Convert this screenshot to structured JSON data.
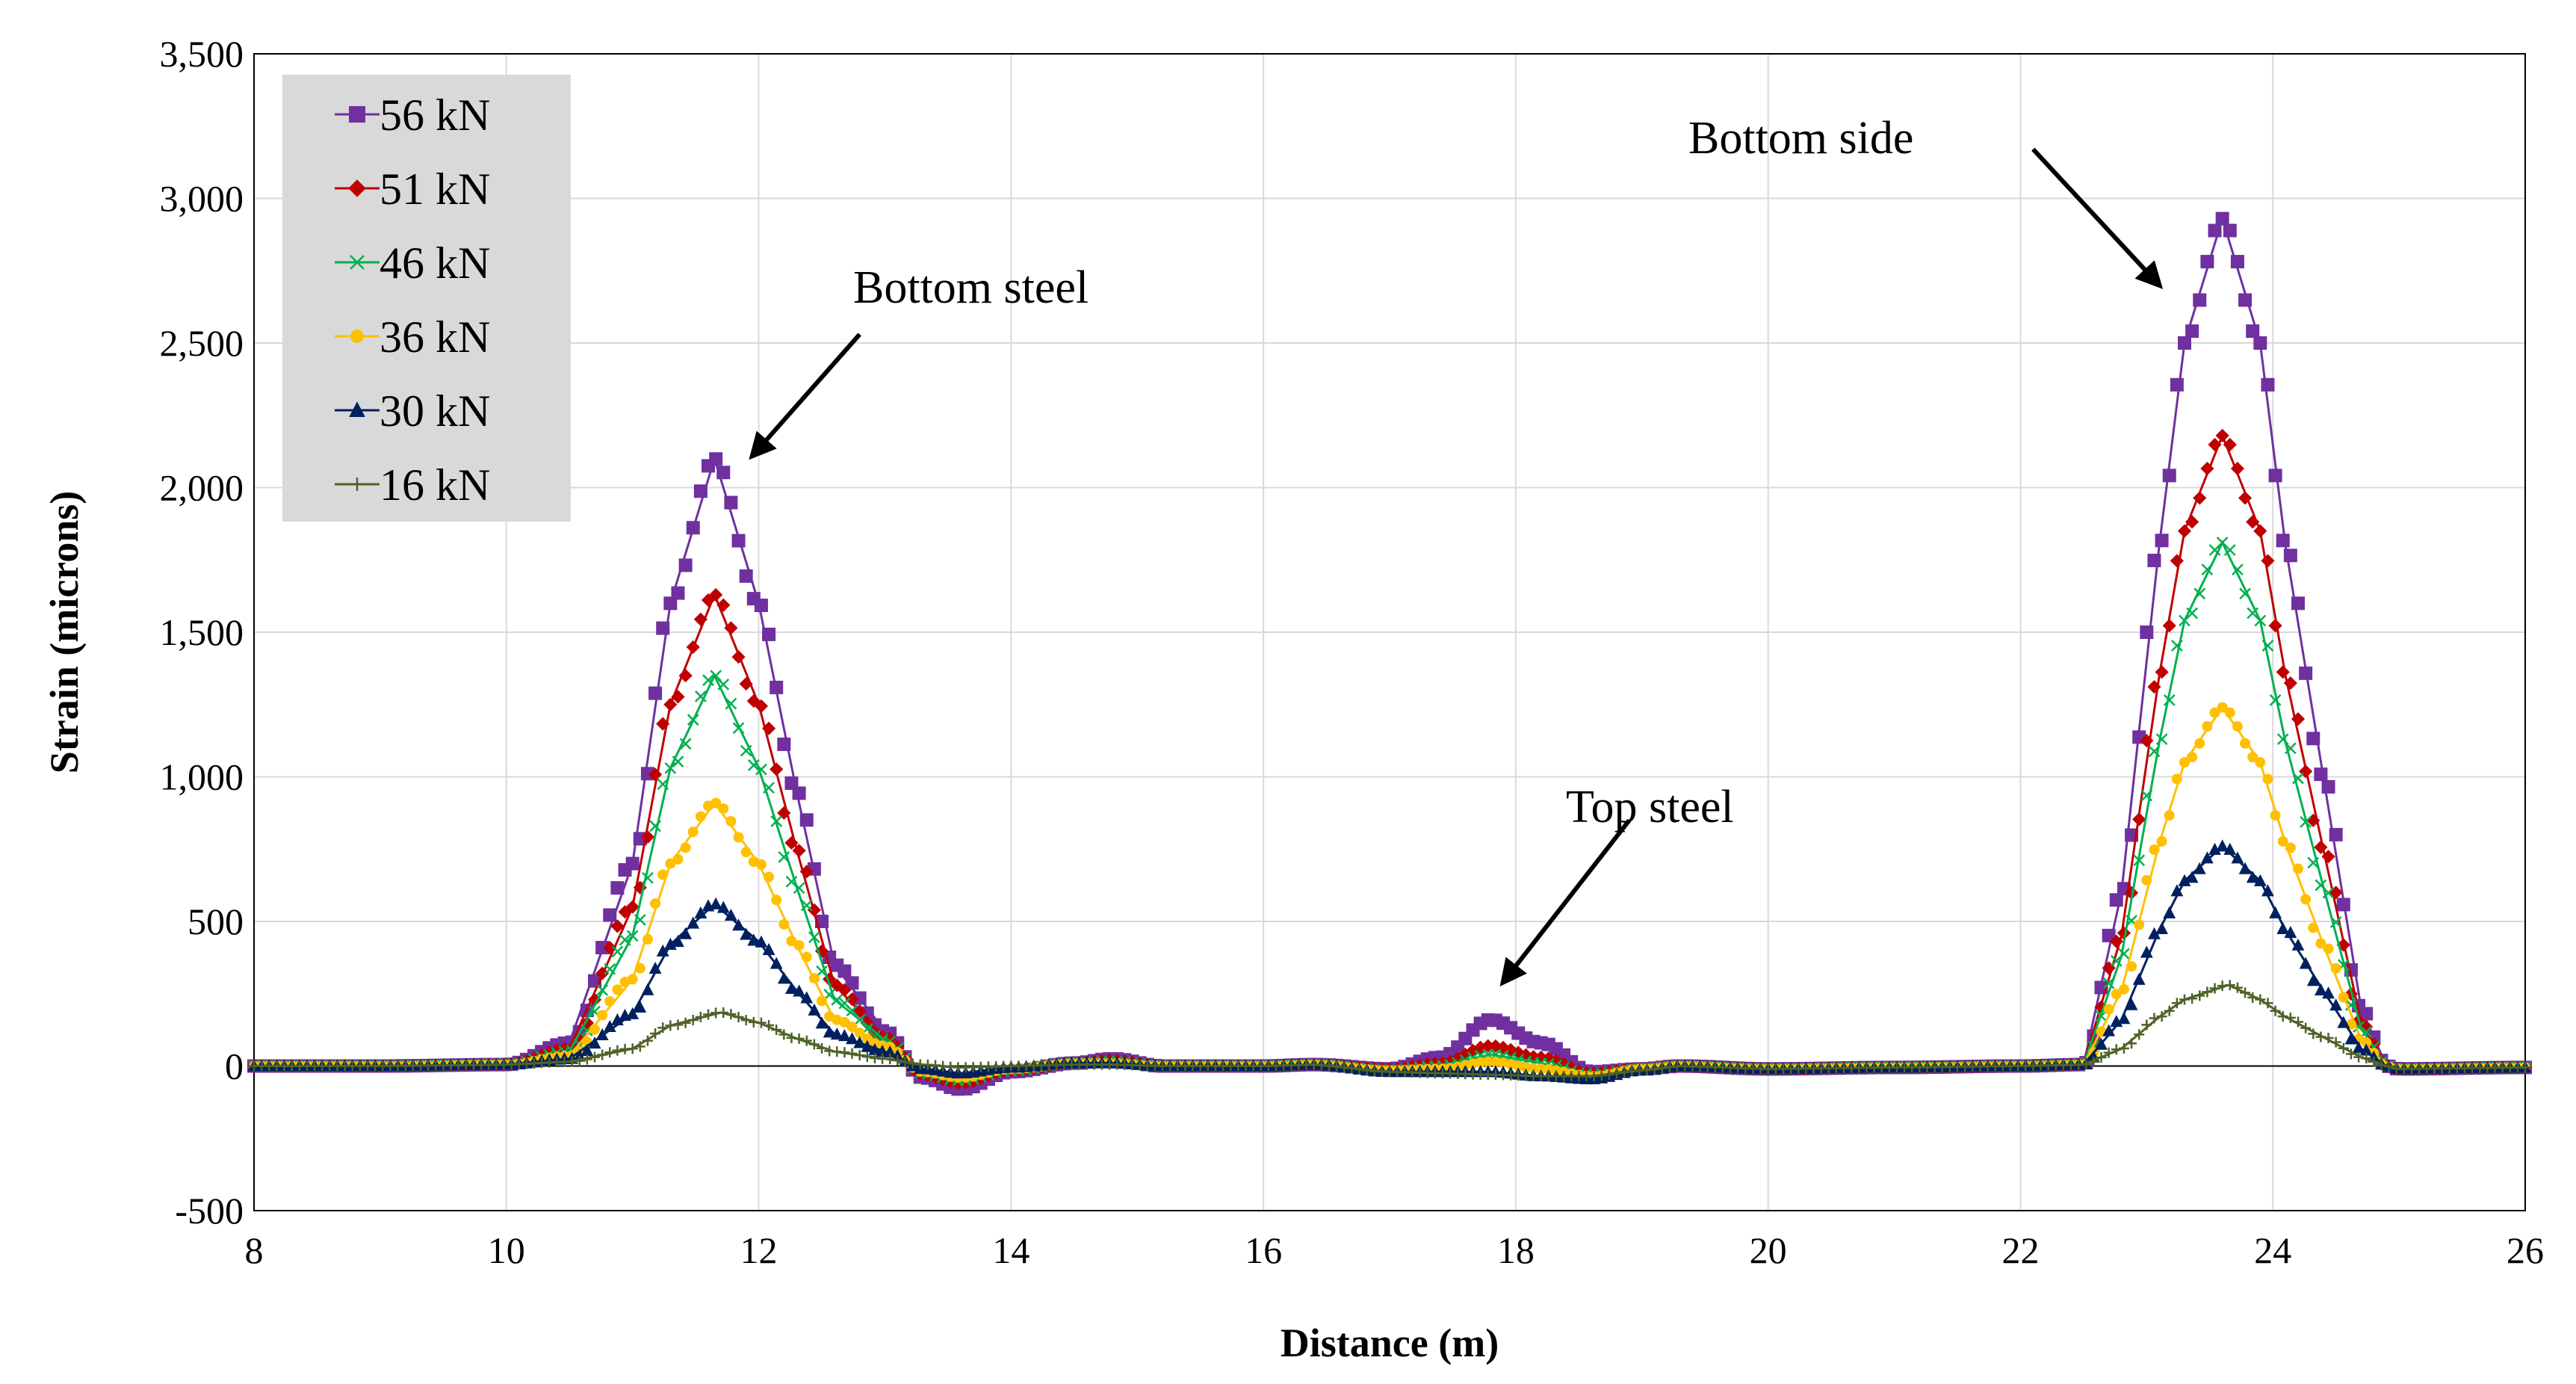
{
  "chart_data": {
    "type": "line",
    "title": "",
    "xlabel": "Distance (m)",
    "ylabel": "Strain (microns)",
    "xlim": [
      8,
      26
    ],
    "ylim": [
      -500,
      3500
    ],
    "xticks": [
      8,
      10,
      12,
      14,
      16,
      18,
      20,
      22,
      24,
      26
    ],
    "yticks": [
      -500,
      0,
      500,
      1000,
      1500,
      2000,
      2500,
      3000,
      3500
    ],
    "ytick_labels": [
      "-500",
      "0",
      "500",
      "1,000",
      "1,500",
      "2,000",
      "2,500",
      "3,000",
      "3,500"
    ],
    "grid": true,
    "legend_position": "top-left",
    "series": [
      {
        "name": "56 kN",
        "color": "#7030A0",
        "marker": "square",
        "points": [
          [
            8,
            0
          ],
          [
            9,
            0
          ],
          [
            10,
            5
          ],
          [
            10.5,
            80
          ],
          [
            11,
            700
          ],
          [
            11.3,
            1600
          ],
          [
            11.65,
            2100
          ],
          [
            12,
            1600
          ],
          [
            12.3,
            950
          ],
          [
            12.6,
            350
          ],
          [
            13,
            120
          ],
          [
            13.3,
            -40
          ],
          [
            13.6,
            -80
          ],
          [
            14,
            -20
          ],
          [
            14.5,
            10
          ],
          [
            14.8,
            25
          ],
          [
            15.2,
            0
          ],
          [
            16,
            0
          ],
          [
            16.4,
            5
          ],
          [
            17,
            -10
          ],
          [
            17.4,
            30
          ],
          [
            17.8,
            160
          ],
          [
            18.2,
            80
          ],
          [
            18.6,
            -20
          ],
          [
            19,
            -10
          ],
          [
            19.3,
            0
          ],
          [
            20,
            -10
          ],
          [
            21,
            -5
          ],
          [
            22,
            0
          ],
          [
            22.5,
            5
          ],
          [
            22.8,
            600
          ],
          [
            23.1,
            1800
          ],
          [
            23.3,
            2500
          ],
          [
            23.6,
            2930
          ],
          [
            23.9,
            2500
          ],
          [
            24.1,
            1800
          ],
          [
            24.4,
            1000
          ],
          [
            24.7,
            200
          ],
          [
            24.9,
            0
          ],
          [
            25,
            -10
          ],
          [
            26,
            -5
          ]
        ]
      },
      {
        "name": "51 kN",
        "color": "#C00000",
        "marker": "diamond",
        "points": [
          [
            8,
            0
          ],
          [
            9,
            0
          ],
          [
            10,
            5
          ],
          [
            10.5,
            60
          ],
          [
            11,
            550
          ],
          [
            11.3,
            1250
          ],
          [
            11.65,
            1630
          ],
          [
            12,
            1250
          ],
          [
            12.3,
            750
          ],
          [
            12.6,
            280
          ],
          [
            13,
            100
          ],
          [
            13.3,
            -30
          ],
          [
            13.6,
            -60
          ],
          [
            14,
            -15
          ],
          [
            14.5,
            10
          ],
          [
            14.8,
            20
          ],
          [
            15.2,
            0
          ],
          [
            16,
            0
          ],
          [
            16.4,
            5
          ],
          [
            17,
            -10
          ],
          [
            17.4,
            10
          ],
          [
            17.8,
            70
          ],
          [
            18.2,
            30
          ],
          [
            18.6,
            -25
          ],
          [
            19,
            -10
          ],
          [
            19.3,
            0
          ],
          [
            20,
            -10
          ],
          [
            21,
            -5
          ],
          [
            22,
            0
          ],
          [
            22.5,
            5
          ],
          [
            22.8,
            450
          ],
          [
            23.1,
            1350
          ],
          [
            23.3,
            1850
          ],
          [
            23.6,
            2180
          ],
          [
            23.9,
            1850
          ],
          [
            24.1,
            1350
          ],
          [
            24.4,
            750
          ],
          [
            24.7,
            150
          ],
          [
            24.9,
            0
          ],
          [
            25,
            -10
          ],
          [
            26,
            -5
          ]
        ]
      },
      {
        "name": "46 kN",
        "color": "#00B050",
        "marker": "x",
        "points": [
          [
            8,
            0
          ],
          [
            9,
            0
          ],
          [
            10,
            5
          ],
          [
            10.5,
            50
          ],
          [
            11,
            450
          ],
          [
            11.3,
            1030
          ],
          [
            11.65,
            1350
          ],
          [
            12,
            1030
          ],
          [
            12.3,
            620
          ],
          [
            12.6,
            230
          ],
          [
            13,
            90
          ],
          [
            13.3,
            -25
          ],
          [
            13.6,
            -50
          ],
          [
            14,
            -15
          ],
          [
            14.5,
            10
          ],
          [
            14.8,
            15
          ],
          [
            15.2,
            0
          ],
          [
            16,
            0
          ],
          [
            16.4,
            5
          ],
          [
            17,
            -15
          ],
          [
            17.4,
            0
          ],
          [
            17.8,
            40
          ],
          [
            18.2,
            10
          ],
          [
            18.6,
            -30
          ],
          [
            19,
            -10
          ],
          [
            19.3,
            0
          ],
          [
            20,
            -10
          ],
          [
            21,
            -5
          ],
          [
            22,
            0
          ],
          [
            22.5,
            5
          ],
          [
            22.8,
            380
          ],
          [
            23.1,
            1120
          ],
          [
            23.3,
            1540
          ],
          [
            23.6,
            1810
          ],
          [
            23.9,
            1540
          ],
          [
            24.1,
            1120
          ],
          [
            24.4,
            620
          ],
          [
            24.7,
            130
          ],
          [
            24.9,
            0
          ],
          [
            25,
            -10
          ],
          [
            26,
            -5
          ]
        ]
      },
      {
        "name": "36 kN",
        "color": "#FFC000",
        "marker": "circle",
        "points": [
          [
            8,
            0
          ],
          [
            9,
            0
          ],
          [
            10,
            5
          ],
          [
            10.5,
            35
          ],
          [
            11,
            300
          ],
          [
            11.3,
            700
          ],
          [
            11.65,
            910
          ],
          [
            12,
            700
          ],
          [
            12.3,
            420
          ],
          [
            12.6,
            160
          ],
          [
            13,
            70
          ],
          [
            13.3,
            -20
          ],
          [
            13.6,
            -40
          ],
          [
            14,
            -10
          ],
          [
            14.5,
            10
          ],
          [
            14.8,
            10
          ],
          [
            15.2,
            0
          ],
          [
            16,
            0
          ],
          [
            16.4,
            5
          ],
          [
            17,
            -15
          ],
          [
            17.4,
            -10
          ],
          [
            17.8,
            15
          ],
          [
            18.2,
            -10
          ],
          [
            18.6,
            -35
          ],
          [
            19,
            -10
          ],
          [
            19.3,
            0
          ],
          [
            20,
            -10
          ],
          [
            21,
            -5
          ],
          [
            22,
            0
          ],
          [
            22.5,
            5
          ],
          [
            22.8,
            260
          ],
          [
            23.1,
            770
          ],
          [
            23.3,
            1050
          ],
          [
            23.6,
            1240
          ],
          [
            23.9,
            1050
          ],
          [
            24.1,
            770
          ],
          [
            24.4,
            420
          ],
          [
            24.7,
            90
          ],
          [
            24.9,
            0
          ],
          [
            25,
            -10
          ],
          [
            26,
            -5
          ]
        ]
      },
      {
        "name": "30 kN",
        "color": "#002060",
        "marker": "triangle",
        "points": [
          [
            8,
            0
          ],
          [
            9,
            0
          ],
          [
            10,
            5
          ],
          [
            10.5,
            25
          ],
          [
            11,
            180
          ],
          [
            11.3,
            420
          ],
          [
            11.65,
            560
          ],
          [
            12,
            430
          ],
          [
            12.3,
            260
          ],
          [
            12.6,
            110
          ],
          [
            13,
            50
          ],
          [
            13.3,
            -10
          ],
          [
            13.6,
            -25
          ],
          [
            14,
            -5
          ],
          [
            14.5,
            10
          ],
          [
            14.8,
            10
          ],
          [
            15.2,
            0
          ],
          [
            16,
            0
          ],
          [
            16.4,
            5
          ],
          [
            17,
            -20
          ],
          [
            17.4,
            -20
          ],
          [
            17.8,
            -20
          ],
          [
            18.2,
            -35
          ],
          [
            18.6,
            -45
          ],
          [
            19,
            -15
          ],
          [
            19.3,
            0
          ],
          [
            20,
            -10
          ],
          [
            21,
            -5
          ],
          [
            22,
            0
          ],
          [
            22.5,
            5
          ],
          [
            22.8,
            160
          ],
          [
            23.1,
            470
          ],
          [
            23.3,
            640
          ],
          [
            23.6,
            760
          ],
          [
            23.9,
            640
          ],
          [
            24.1,
            470
          ],
          [
            24.4,
            260
          ],
          [
            24.7,
            60
          ],
          [
            24.9,
            0
          ],
          [
            25,
            -10
          ],
          [
            26,
            -5
          ]
        ]
      },
      {
        "name": "16 kN",
        "color": "#4F6228",
        "marker": "plus",
        "points": [
          [
            8,
            0
          ],
          [
            9,
            0
          ],
          [
            10,
            5
          ],
          [
            10.5,
            15
          ],
          [
            11,
            60
          ],
          [
            11.3,
            140
          ],
          [
            11.7,
            185
          ],
          [
            12,
            150
          ],
          [
            12.3,
            95
          ],
          [
            12.6,
            50
          ],
          [
            13,
            25
          ],
          [
            13.3,
            5
          ],
          [
            13.6,
            -5
          ],
          [
            14,
            0
          ],
          [
            14.5,
            5
          ],
          [
            14.8,
            5
          ],
          [
            15.2,
            0
          ],
          [
            16,
            0
          ],
          [
            16.4,
            5
          ],
          [
            17,
            -20
          ],
          [
            17.4,
            -25
          ],
          [
            17.8,
            -30
          ],
          [
            18.2,
            -35
          ],
          [
            18.6,
            -35
          ],
          [
            19,
            -15
          ],
          [
            19.3,
            0
          ],
          [
            20,
            -10
          ],
          [
            21,
            -5
          ],
          [
            22,
            0
          ],
          [
            22.5,
            5
          ],
          [
            22.8,
            60
          ],
          [
            23.1,
            170
          ],
          [
            23.3,
            230
          ],
          [
            23.65,
            280
          ],
          [
            23.9,
            230
          ],
          [
            24.1,
            170
          ],
          [
            24.4,
            100
          ],
          [
            24.7,
            30
          ],
          [
            24.9,
            0
          ],
          [
            25,
            -10
          ],
          [
            26,
            -5
          ]
        ]
      }
    ],
    "annotations": [
      {
        "text": "Bottom steel",
        "arrow_from": [
          12.8,
          2530
        ],
        "arrow_to": [
          11.95,
          2110
        ]
      },
      {
        "text": "Top steel",
        "arrow_from": [
          18.9,
          850
        ],
        "arrow_to": [
          17.9,
          290
        ]
      },
      {
        "text": "Bottom side",
        "arrow_from": [
          22.1,
          3170
        ],
        "arrow_to": [
          23.1,
          2700
        ]
      }
    ]
  }
}
